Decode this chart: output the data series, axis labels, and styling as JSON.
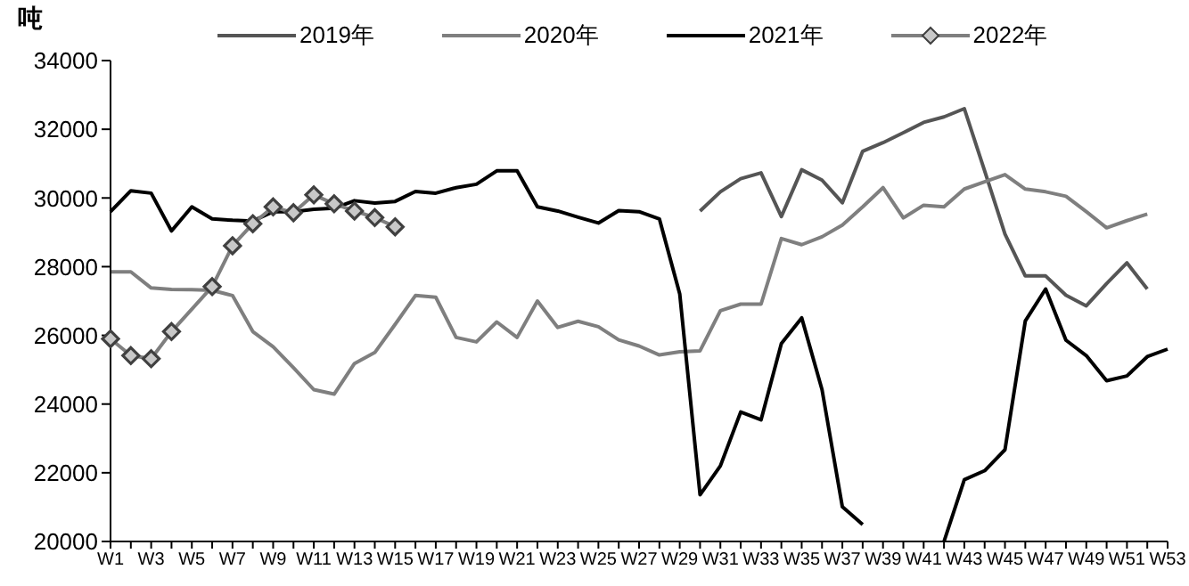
{
  "chart_data": {
    "type": "line",
    "ylabel": "吨",
    "categories": [
      "W1",
      null,
      "W3",
      null,
      "W5",
      null,
      "W7",
      null,
      "W9",
      null,
      "W11",
      null,
      "W13",
      null,
      "W15",
      null,
      "W17",
      null,
      "W19",
      null,
      "W21",
      null,
      "W23",
      null,
      "W25",
      null,
      "W27",
      null,
      "W29",
      null,
      "W31",
      null,
      "W33",
      null,
      "W35",
      null,
      "W37",
      null,
      "W39",
      null,
      "W41",
      null,
      "W43",
      null,
      "W45",
      null,
      "W47",
      null,
      "W49",
      null,
      "W51",
      null,
      "W53"
    ],
    "ylim": [
      20000,
      34000
    ],
    "yticks": [
      20000,
      22000,
      24000,
      26000,
      28000,
      30000,
      32000,
      34000
    ],
    "grid": false,
    "legend": "top",
    "marker": "none",
    "line_style": "solid",
    "series": [
      {
        "name": "2019年",
        "color": "#555555",
        "values": [
          null,
          null,
          null,
          null,
          null,
          null,
          null,
          null,
          null,
          null,
          null,
          null,
          null,
          null,
          null,
          null,
          null,
          null,
          null,
          null,
          null,
          null,
          null,
          null,
          null,
          null,
          null,
          null,
          null,
          29620,
          30180,
          30560,
          30730,
          29460,
          30820,
          30520,
          29860,
          31360,
          31610,
          31900,
          32200,
          32360,
          32600,
          30790,
          28950,
          27730,
          27730,
          27170,
          26860,
          27510,
          28110,
          27350,
          null
        ]
      },
      {
        "name": "2020年",
        "color": "#7f7f7f",
        "values": [
          27850,
          27850,
          27380,
          27340,
          27330,
          27310,
          27160,
          26110,
          25670,
          25060,
          24420,
          24290,
          25180,
          25500,
          26320,
          27160,
          27110,
          25940,
          25810,
          26390,
          25940,
          27000,
          26230,
          26410,
          26250,
          25870,
          25690,
          25430,
          25520,
          25550,
          26720,
          26910,
          26910,
          28820,
          28640,
          28870,
          29210,
          29740,
          30300,
          29420,
          29790,
          29740,
          30260,
          30470,
          30680,
          30260,
          30180,
          30050,
          29600,
          29130,
          29340,
          29530,
          null
        ]
      },
      {
        "name": "2021年",
        "color": "#000000",
        "values": [
          29600,
          30210,
          30140,
          29040,
          29740,
          29390,
          29350,
          29330,
          29600,
          29600,
          29670,
          29700,
          29920,
          29850,
          29900,
          30190,
          30140,
          30300,
          30400,
          30790,
          30790,
          29740,
          29620,
          29440,
          29270,
          29630,
          29600,
          29390,
          27210,
          21360,
          22200,
          23770,
          23540,
          25760,
          26510,
          24420,
          21010,
          20490,
          null,
          null,
          null,
          20000,
          21800,
          22060,
          22670,
          26420,
          27350,
          25860,
          25410,
          24680,
          24820,
          25380,
          25600
        ]
      },
      {
        "name": "2022年",
        "color": "#7f7f7f",
        "marker": "diamond",
        "values": [
          25900,
          25410,
          25320,
          26110,
          null,
          27420,
          28610,
          29250,
          29740,
          29570,
          30090,
          29830,
          29620,
          29430,
          29160,
          null,
          null,
          null,
          null,
          null,
          null,
          null,
          null,
          null,
          null,
          null,
          null,
          null,
          null,
          null,
          null,
          null,
          null,
          null,
          null,
          null,
          null,
          null,
          null,
          null,
          null,
          null,
          null,
          null,
          null,
          null,
          null,
          null,
          null,
          null,
          null,
          null,
          null
        ]
      }
    ]
  }
}
